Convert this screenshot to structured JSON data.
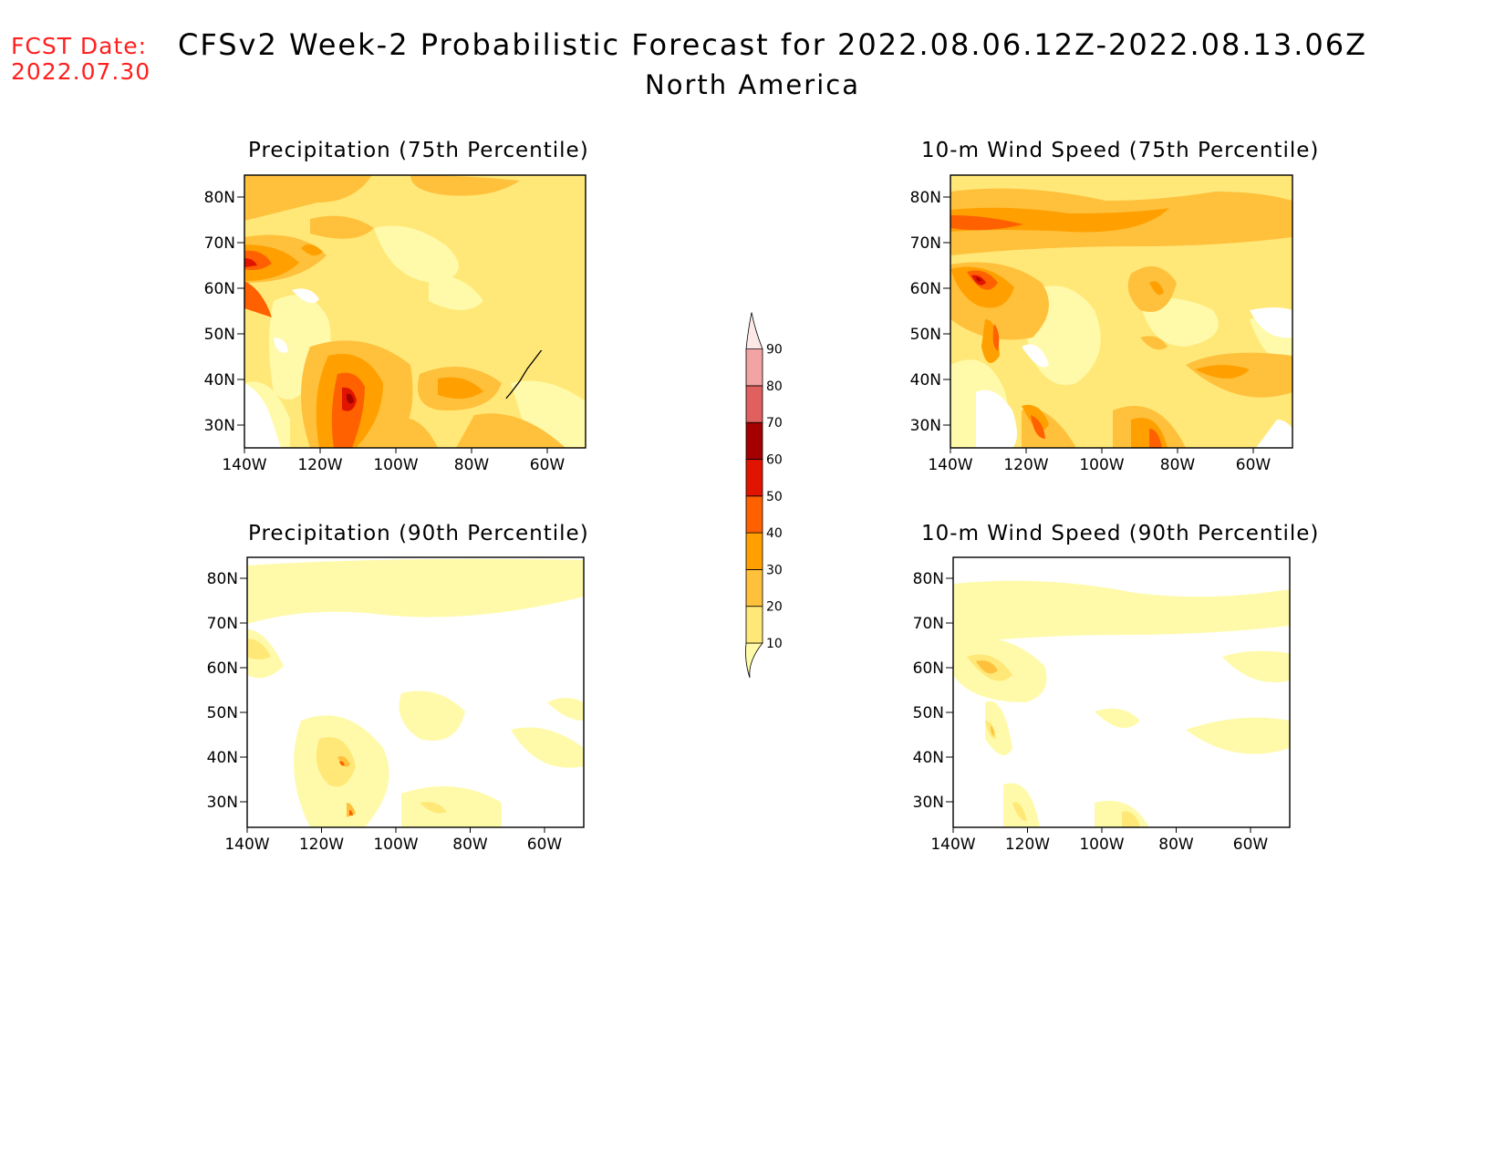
{
  "header": {
    "fcst_label": "FCST Date:",
    "fcst_date": "2022.07.30",
    "title": "CFSv2 Week-2 Probabilistic Forecast for 2022.08.06.12Z-2022.08.13.06Z",
    "subtitle": "North America"
  },
  "panels": [
    {
      "id": "precip-75",
      "title": "Precipitation (75th Percentile)"
    },
    {
      "id": "wind-75",
      "title": "10-m Wind Speed (75th Percentile)"
    },
    {
      "id": "precip-90",
      "title": "Precipitation (90th Percentile)"
    },
    {
      "id": "wind-90",
      "title": "10-m Wind Speed (90th Percentile)"
    }
  ],
  "map_axes": {
    "lat_labels": [
      "80N",
      "70N",
      "60N",
      "50N",
      "40N",
      "30N"
    ],
    "lon_labels": [
      "140W",
      "120W",
      "100W",
      "80W",
      "60W"
    ]
  },
  "legend": {
    "levels": [
      "10",
      "20",
      "30",
      "40",
      "50",
      "60",
      "70",
      "80",
      "90"
    ],
    "colors": [
      "#fffaaa",
      "#ffe878",
      "#ffc03c",
      "#ffa000",
      "#ff6000",
      "#e11400",
      "#a50000",
      "#e06060",
      "#f2a3a3",
      "#fde8e8"
    ]
  }
}
